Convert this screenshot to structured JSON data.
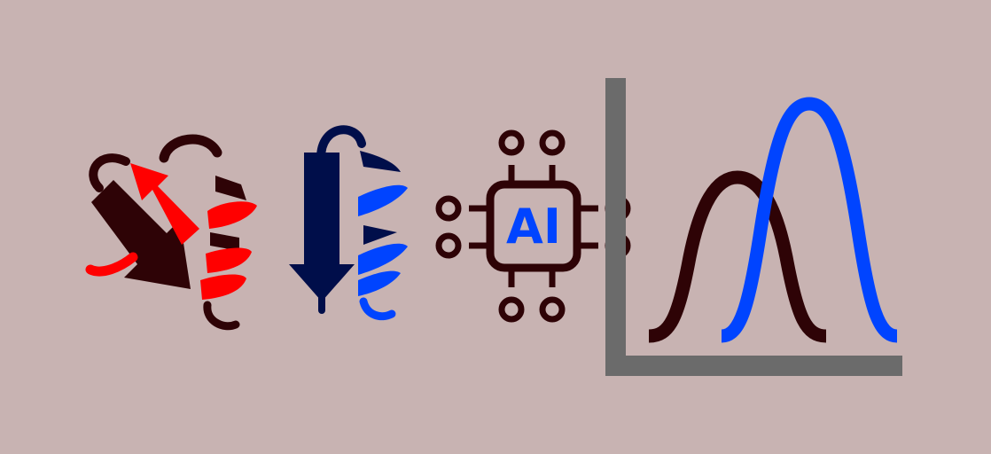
{
  "colors": {
    "background": "#c8b3b2",
    "dark_brown": "#2e0306",
    "red": "#ff0000",
    "navy": "#000e4a",
    "blue": "#0044ff",
    "axis_gray": "#6b6b6b"
  },
  "icons": {
    "protein_red": "protein-structure-icon",
    "protein_blue": "protein-hairpin-icon",
    "ai_chip": "ai-chip-icon",
    "distributions": "distribution-curves-icon"
  },
  "chip": {
    "label": "AI"
  }
}
